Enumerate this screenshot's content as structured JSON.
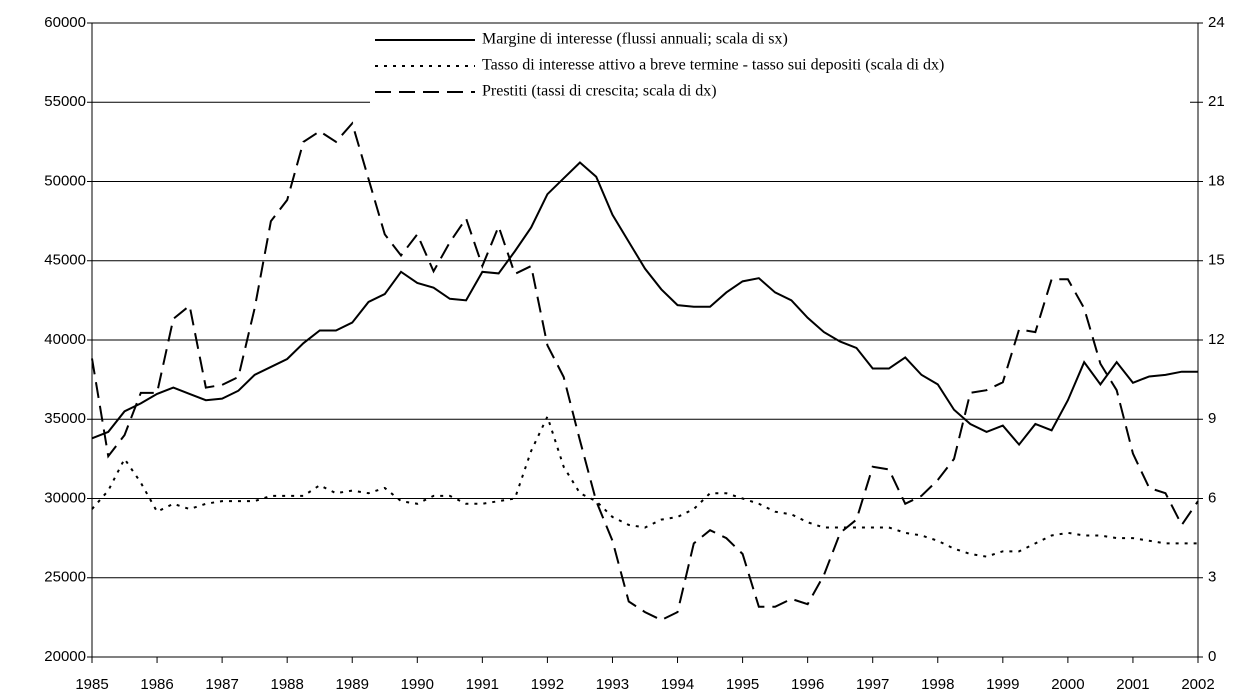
{
  "chart_data": {
    "type": "line",
    "x": [
      1985,
      1985.25,
      1985.5,
      1985.75,
      1986,
      1986.25,
      1986.5,
      1986.75,
      1987,
      1987.25,
      1987.5,
      1987.75,
      1988,
      1988.25,
      1988.5,
      1988.75,
      1989,
      1989.25,
      1989.5,
      1989.75,
      1990,
      1990.25,
      1990.5,
      1990.75,
      1991,
      1991.25,
      1991.5,
      1991.75,
      1992,
      1992.25,
      1992.5,
      1992.75,
      1993,
      1993.25,
      1993.5,
      1993.75,
      1994,
      1994.25,
      1994.5,
      1994.75,
      1995,
      1995.25,
      1995.5,
      1995.75,
      1996,
      1996.25,
      1996.5,
      1996.75,
      1997,
      1997.25,
      1997.5,
      1997.75,
      1998,
      1998.25,
      1998.5,
      1998.75,
      1999,
      1999.25,
      1999.5,
      1999.75,
      2000,
      2000.25,
      2000.5,
      2000.75,
      2001,
      2001.25,
      2001.5,
      2001.75,
      2002
    ],
    "series": [
      {
        "name": "Margine di interesse (flussi annuali; scala di sx)",
        "color": "#000000",
        "dash": "solid",
        "values": [
          33800,
          34200,
          35500,
          36000,
          36600,
          37000,
          36600,
          36200,
          36300,
          36800,
          37800,
          38300,
          38800,
          39800,
          40600,
          40600,
          41100,
          42400,
          42900,
          44300,
          43600,
          43300,
          42600,
          42500,
          44300,
          44200,
          45600,
          47100,
          49200,
          50200,
          51200,
          50300,
          47900,
          46200,
          44500,
          43200,
          42200,
          42100,
          42100,
          43000,
          43700,
          43900,
          43000,
          42500,
          41400,
          40500,
          39900,
          39500,
          38200,
          38200,
          38900,
          37800,
          37200,
          35600,
          34700,
          34200,
          34600,
          33400,
          34700,
          34300,
          36200,
          38600,
          37200,
          38600,
          37300,
          37700,
          37800,
          38000,
          38000
        ]
      },
      {
        "name": "Tasso di interesse attivo a breve termine - tasso sui depositi (scala di dx)",
        "color": "#000000",
        "dash": "dotted",
        "axis": "y2",
        "values": [
          5.6,
          6.3,
          7.5,
          6.6,
          5.5,
          5.8,
          5.6,
          5.8,
          5.9,
          5.9,
          5.9,
          6.1,
          6.1,
          6.1,
          6.5,
          6.2,
          6.3,
          6.2,
          6.4,
          5.9,
          5.8,
          6.1,
          6.1,
          5.8,
          5.8,
          5.9,
          6.0,
          7.8,
          9.1,
          7.2,
          6.2,
          5.9,
          5.3,
          5.0,
          4.9,
          5.2,
          5.3,
          5.6,
          6.2,
          6.2,
          6.0,
          5.8,
          5.5,
          5.4,
          5.1,
          4.9,
          4.9,
          4.9,
          4.9,
          4.9,
          4.7,
          4.6,
          4.4,
          4.1,
          3.9,
          3.8,
          4.0,
          4.0,
          4.3,
          4.6,
          4.7,
          4.6,
          4.6,
          4.5,
          4.5,
          4.4,
          4.3,
          4.3,
          4.3
        ]
      },
      {
        "name": "Prestiti (tassi di crescita; scala di dx)",
        "color": "#000000",
        "dash": "dashed",
        "axis": "y2",
        "values": [
          11.3,
          7.6,
          8.4,
          10.0,
          10.0,
          12.8,
          13.3,
          10.2,
          10.3,
          10.6,
          13.2,
          16.5,
          17.3,
          19.5,
          19.9,
          19.5,
          20.2,
          18.1,
          16.0,
          15.2,
          16.0,
          14.6,
          15.7,
          16.6,
          14.8,
          16.3,
          14.5,
          14.8,
          11.8,
          10.6,
          8.2,
          5.9,
          4.4,
          2.1,
          1.7,
          1.4,
          1.7,
          4.3,
          4.8,
          4.5,
          3.9,
          1.9,
          1.9,
          2.2,
          2.0,
          3.1,
          4.7,
          5.2,
          7.2,
          7.1,
          5.8,
          6.1,
          6.7,
          7.5,
          10.0,
          10.1,
          10.4,
          12.4,
          12.3,
          14.3,
          14.3,
          13.2,
          11.1,
          10.1,
          7.7,
          6.4,
          6.2,
          5.0,
          5.9
        ]
      }
    ],
    "xlim": [
      1985,
      2002
    ],
    "xticks": [
      1985,
      1986,
      1987,
      1988,
      1989,
      1990,
      1991,
      1992,
      1993,
      1994,
      1995,
      1996,
      1997,
      1998,
      1999,
      2000,
      2001,
      2002
    ],
    "ylim": [
      20000,
      60000
    ],
    "yticks": [
      20000,
      25000,
      30000,
      35000,
      40000,
      45000,
      50000,
      55000,
      60000
    ],
    "y2lim": [
      0,
      24
    ],
    "y2ticks": [
      0,
      3,
      6,
      9,
      12,
      15,
      18,
      21,
      24
    ],
    "grid": true,
    "legend": "top"
  }
}
